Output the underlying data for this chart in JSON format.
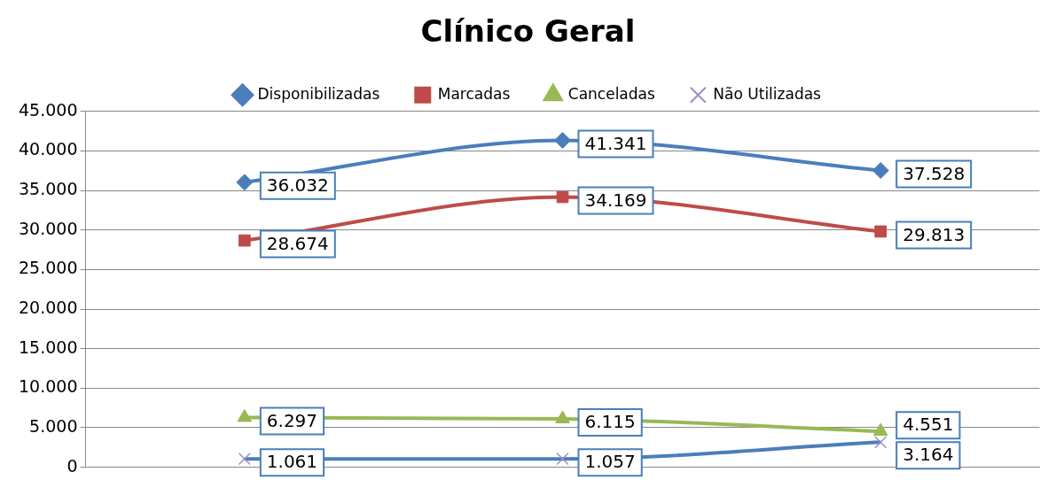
{
  "chart_data": {
    "type": "line",
    "title": "Clínico Geral",
    "categories": [
      null,
      null,
      null
    ],
    "series": [
      {
        "name": "Disponibilizadas",
        "color": "#4a7ebb",
        "marker": "diamond",
        "values": [
          36032,
          41341,
          37528
        ],
        "value_labels": [
          "36.032",
          "41.341",
          "37.528"
        ]
      },
      {
        "name": "Marcadas",
        "color": "#be4b48",
        "marker": "square",
        "values": [
          28674,
          34169,
          29813
        ],
        "value_labels": [
          "28.674",
          "34.169",
          "29.813"
        ]
      },
      {
        "name": "Canceladas",
        "color": "#98b954",
        "marker": "triangle",
        "values": [
          6297,
          6115,
          4551
        ],
        "value_labels": [
          "6.297",
          "6.115",
          "4.551"
        ]
      },
      {
        "name": "Não Utilizadas",
        "color": "#4a7ebb",
        "marker": "cross",
        "values": [
          1061,
          1057,
          3164
        ],
        "value_labels": [
          "1.061",
          "1.057",
          "3.164"
        ]
      }
    ],
    "ylim": [
      0,
      45000
    ],
    "yticks": [
      {
        "value": 0,
        "label": "0"
      },
      {
        "value": 5000,
        "label": "5.000"
      },
      {
        "value": 10000,
        "label": "10.000"
      },
      {
        "value": 15000,
        "label": "15.000"
      },
      {
        "value": 20000,
        "label": "20.000"
      },
      {
        "value": 25000,
        "label": "25.000"
      },
      {
        "value": 30000,
        "label": "30.000"
      },
      {
        "value": 35000,
        "label": "35.000"
      },
      {
        "value": 40000,
        "label": "40.000"
      },
      {
        "value": 45000,
        "label": "45.000"
      }
    ],
    "grid": "y",
    "legend": "top"
  }
}
